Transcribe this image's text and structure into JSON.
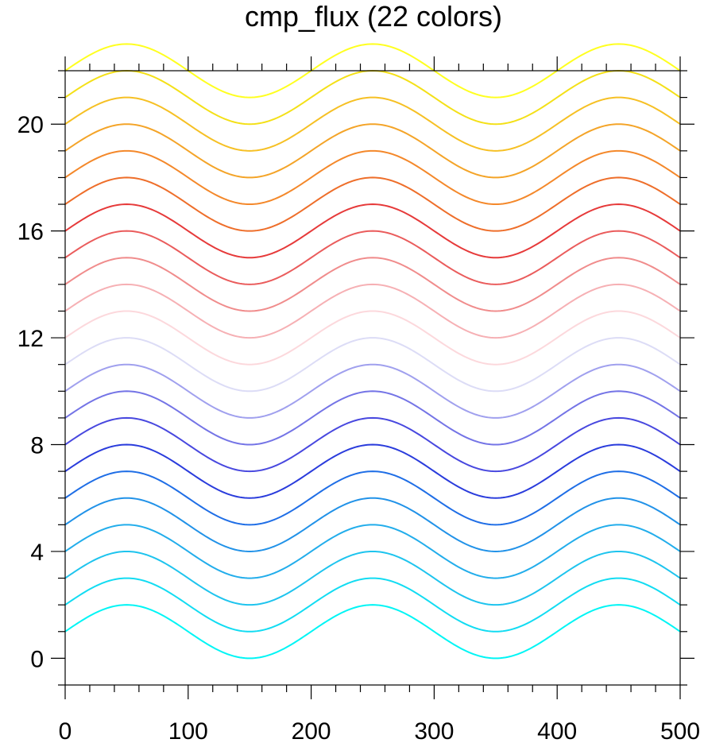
{
  "chart_data": {
    "type": "line",
    "title": "cmp_flux (22 colors)",
    "xlabel": "",
    "ylabel": "",
    "xlim": [
      0,
      500
    ],
    "ylim": [
      -1,
      22
    ],
    "x_ticks": [
      0,
      100,
      200,
      300,
      400,
      500
    ],
    "y_ticks": [
      0,
      4,
      8,
      12,
      16,
      20
    ],
    "x_minor_step": 20,
    "y_minor_step": 1,
    "grid": false,
    "legend": "none",
    "function": "y = offset + sin(2*pi*x/200)",
    "x_sample_step": 2,
    "series": [
      {
        "offset": 1,
        "color": "#00f5f5"
      },
      {
        "offset": 2,
        "color": "#12dcf2"
      },
      {
        "offset": 3,
        "color": "#1ec4ee"
      },
      {
        "offset": 4,
        "color": "#22adeb"
      },
      {
        "offset": 5,
        "color": "#2192e8"
      },
      {
        "offset": 6,
        "color": "#1f6ee6"
      },
      {
        "offset": 7,
        "color": "#2a3cdc"
      },
      {
        "offset": 8,
        "color": "#4848df"
      },
      {
        "offset": 9,
        "color": "#7474e6"
      },
      {
        "offset": 10,
        "color": "#a0a0ee"
      },
      {
        "offset": 11,
        "color": "#dcdcf6"
      },
      {
        "offset": 12,
        "color": "#fcd8dc"
      },
      {
        "offset": 13,
        "color": "#f6b0b4"
      },
      {
        "offset": 14,
        "color": "#f08c8c"
      },
      {
        "offset": 15,
        "color": "#ea5c5c"
      },
      {
        "offset": 16,
        "color": "#e63a3a"
      },
      {
        "offset": 17,
        "color": "#ee6e2a"
      },
      {
        "offset": 18,
        "color": "#f4882a"
      },
      {
        "offset": 19,
        "color": "#f4a428"
      },
      {
        "offset": 20,
        "color": "#f6c024"
      },
      {
        "offset": 21,
        "color": "#f4e018"
      },
      {
        "offset": 22,
        "color": "#ffff20"
      }
    ]
  }
}
